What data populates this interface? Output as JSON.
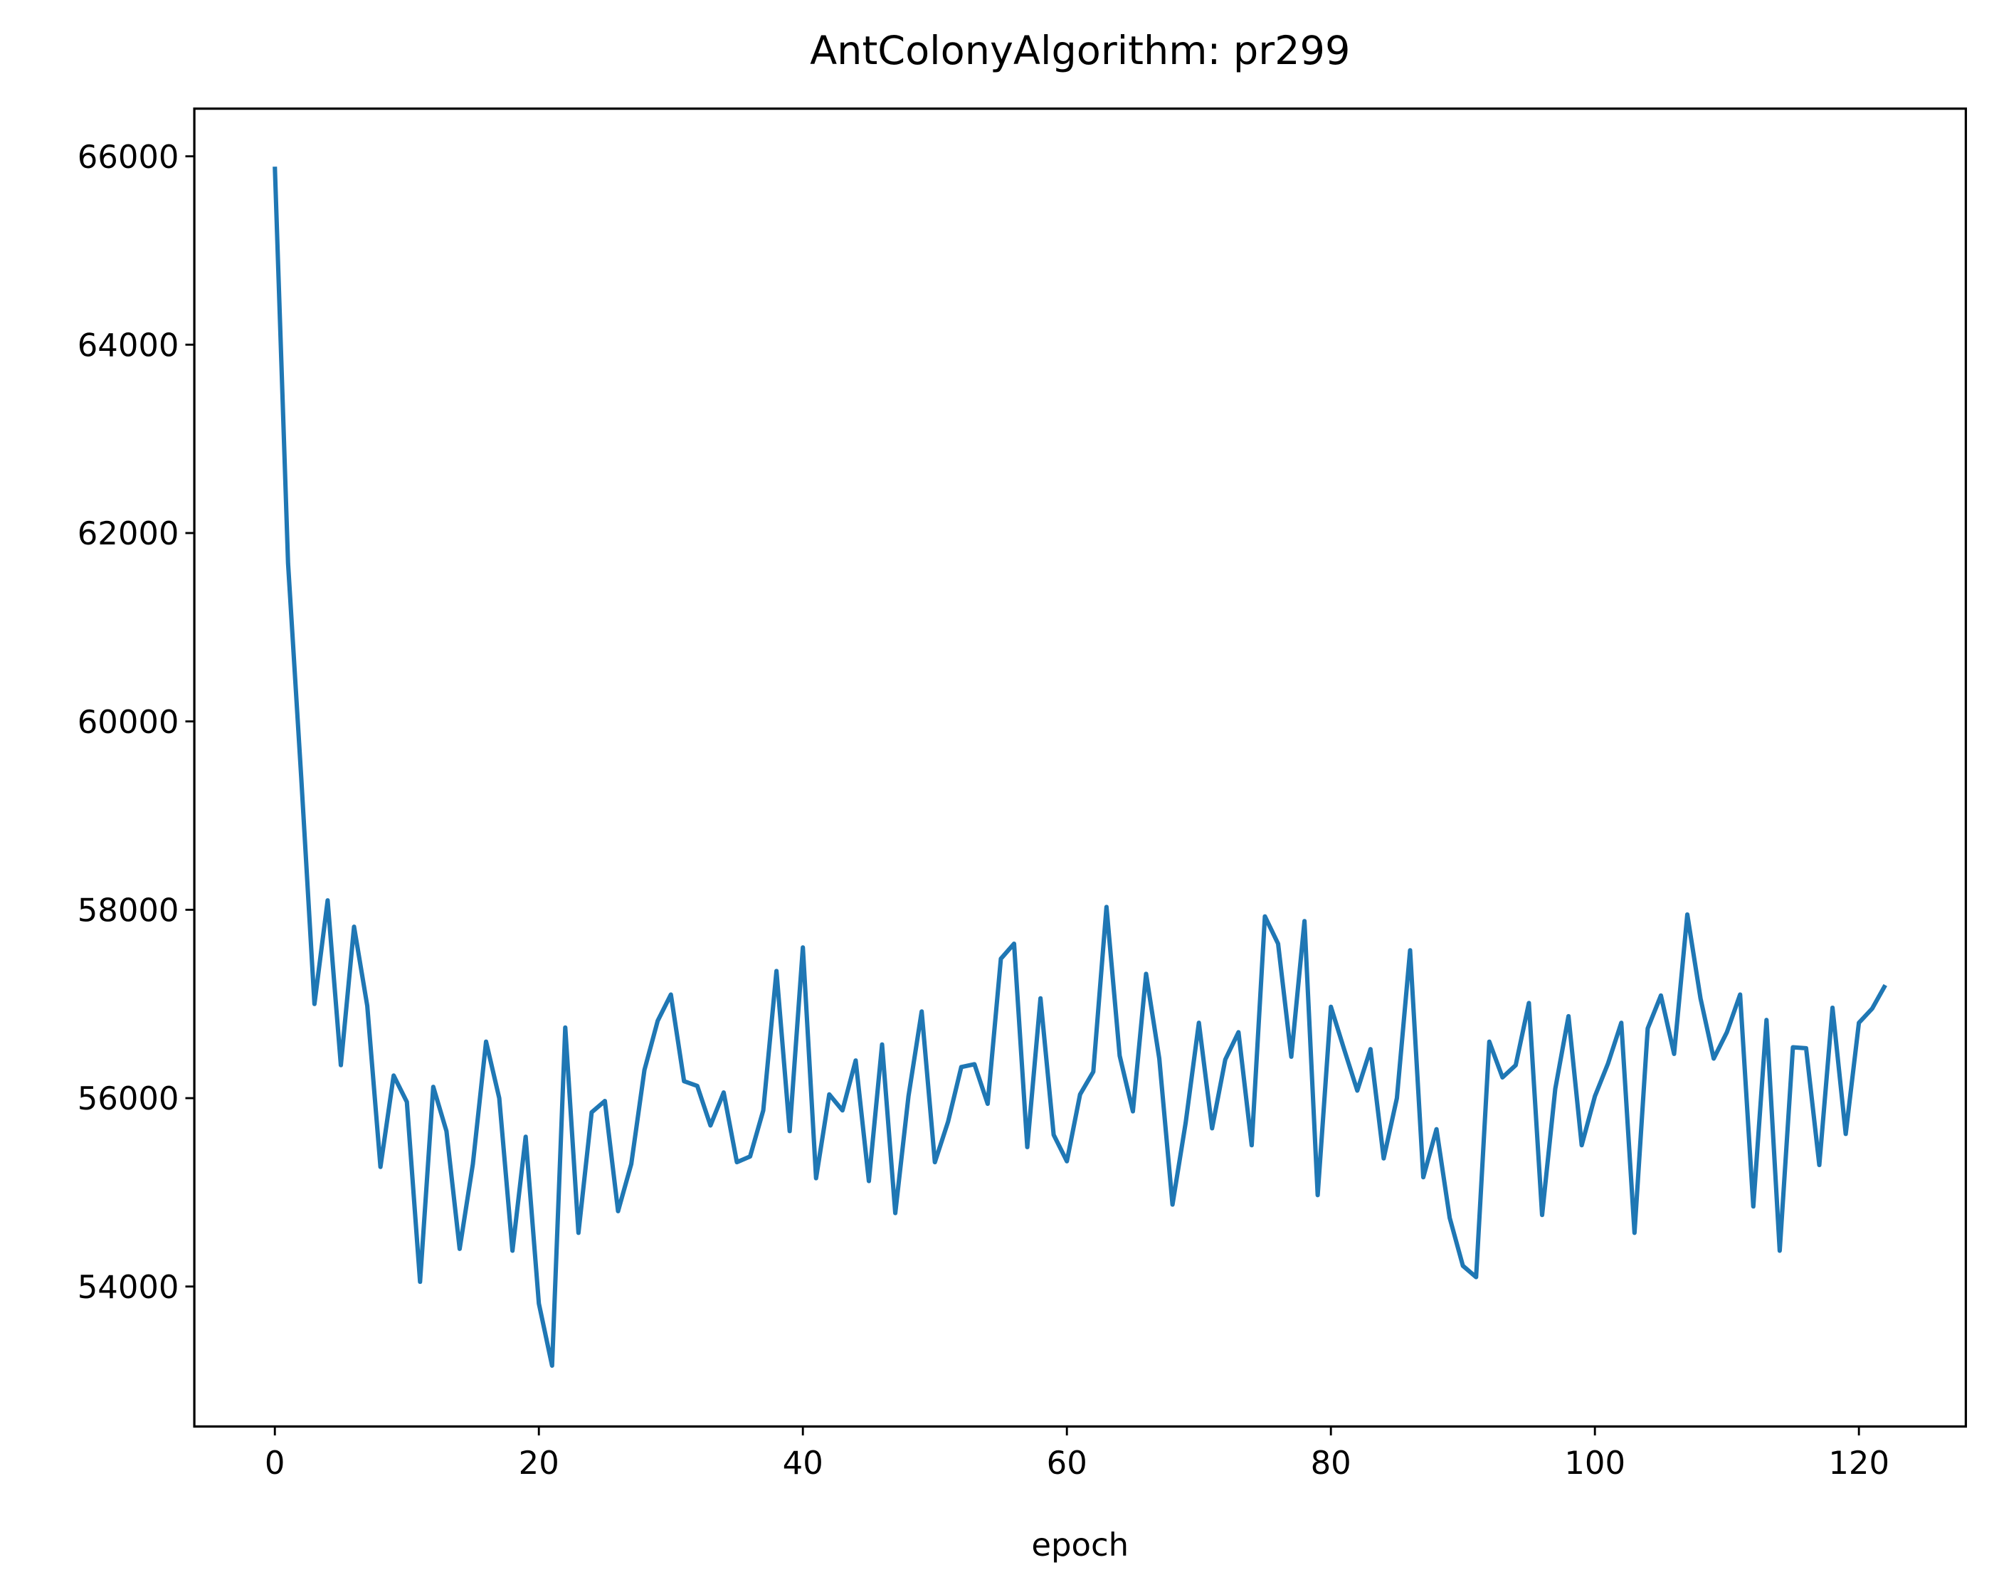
{
  "chart_data": {
    "type": "line",
    "title": "AntColonyAlgorithm: pr299",
    "x_label": "epoch",
    "x": [
      0,
      1,
      2,
      3,
      4,
      5,
      6,
      7,
      8,
      9,
      10,
      11,
      12,
      13,
      14,
      15,
      16,
      17,
      18,
      19,
      20,
      21,
      22,
      23,
      24,
      25,
      26,
      27,
      28,
      29,
      30,
      31,
      32,
      33,
      34,
      35,
      36,
      37,
      38,
      39,
      40,
      41,
      42,
      43,
      44,
      45,
      46,
      47,
      48,
      49,
      50,
      51,
      52,
      53,
      54,
      55,
      56,
      57,
      58,
      59,
      60,
      61,
      62,
      63,
      64,
      65,
      66,
      67,
      68,
      69,
      70,
      71,
      72,
      73,
      74,
      75,
      76,
      77,
      78,
      79,
      80,
      81,
      82,
      83,
      84,
      85,
      86,
      87,
      88,
      89,
      90,
      91,
      92,
      93,
      94,
      95,
      96,
      97,
      98,
      99,
      100,
      101,
      102,
      103,
      104,
      105,
      106,
      107,
      108,
      109,
      110,
      111,
      112,
      113,
      114,
      115,
      116,
      117,
      118,
      119,
      120,
      121,
      122
    ],
    "series": [
      {
        "color": "#1f77b4",
        "values": [
          65890,
          61680,
          59400,
          57000,
          58100,
          56350,
          57820,
          56980,
          55270,
          56240,
          55960,
          54050,
          56120,
          55650,
          54400,
          55300,
          56600,
          56000,
          54380,
          55590,
          53820,
          53160,
          56750,
          54570,
          55850,
          55970,
          54800,
          55300,
          56300,
          56820,
          57100,
          56180,
          56130,
          55710,
          56060,
          55320,
          55380,
          55870,
          57350,
          55650,
          57600,
          55150,
          56040,
          55870,
          56400,
          55120,
          56570,
          54780,
          56020,
          56920,
          55320,
          55750,
          56330,
          56360,
          55940,
          57480,
          57640,
          55480,
          57060,
          55610,
          55330,
          56040,
          56280,
          58030,
          56450,
          55860,
          57320,
          56420,
          54870,
          55740,
          56800,
          55680,
          56410,
          56700,
          55500,
          57930,
          57640,
          56440,
          57880,
          54970,
          56970,
          56520,
          56080,
          56520,
          55360,
          56000,
          57570,
          55160,
          55670,
          54730,
          54220,
          54100,
          56600,
          56220,
          56350,
          57010,
          54760,
          56100,
          56870,
          55500,
          56020,
          56370,
          56800,
          54570,
          56740,
          57090,
          56470,
          57950,
          57060,
          56420,
          56700,
          57100,
          54850,
          56830,
          54380,
          56540,
          56530,
          55290,
          56960,
          55620,
          56800,
          56950,
          57200
        ]
      }
    ],
    "xlim": [
      -6.1,
      128.1
    ],
    "xticks": [
      0,
      20,
      40,
      60,
      80,
      100,
      120
    ],
    "ylim": [
      52514,
      66506
    ],
    "yticks": [
      54000,
      56000,
      58000,
      60000,
      62000,
      64000,
      66000
    ]
  }
}
